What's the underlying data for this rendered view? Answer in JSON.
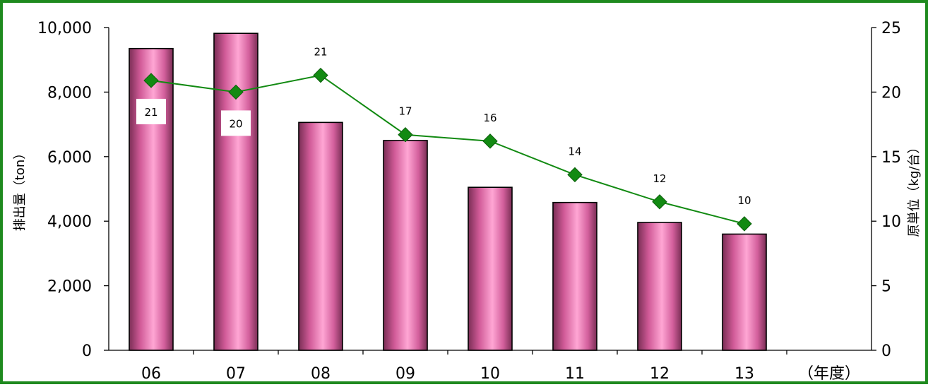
{
  "chart_data": {
    "type": "bar+line",
    "categories": [
      "06",
      "07",
      "08",
      "09",
      "10",
      "11",
      "12",
      "13"
    ],
    "x_unit_label": "（年度）",
    "series": [
      {
        "axis": "left",
        "type": "bar",
        "values": [
          9350,
          9820,
          7060,
          6500,
          5050,
          4580,
          3960,
          3600
        ],
        "color": "#f06aa8"
      },
      {
        "axis": "right",
        "type": "line",
        "values": [
          20.9,
          20.0,
          21.3,
          16.7,
          16.2,
          13.6,
          11.5,
          9.8
        ],
        "data_labels": [
          "21",
          "20",
          "21",
          "17",
          "16",
          "14",
          "12",
          "10"
        ],
        "color": "#128a12"
      }
    ],
    "ylabel": "排出量（ton）",
    "ylabel_right": "原単位（kg/台）",
    "ylim": [
      0,
      10000
    ],
    "ylim_right": [
      0,
      25
    ],
    "yticks_left": [
      "0",
      "2,000",
      "4,000",
      "6,000",
      "8,000",
      "10,000"
    ],
    "yticks_right": [
      "0",
      "5",
      "10",
      "15",
      "20",
      "25"
    ],
    "grid": false,
    "legend": "none"
  }
}
